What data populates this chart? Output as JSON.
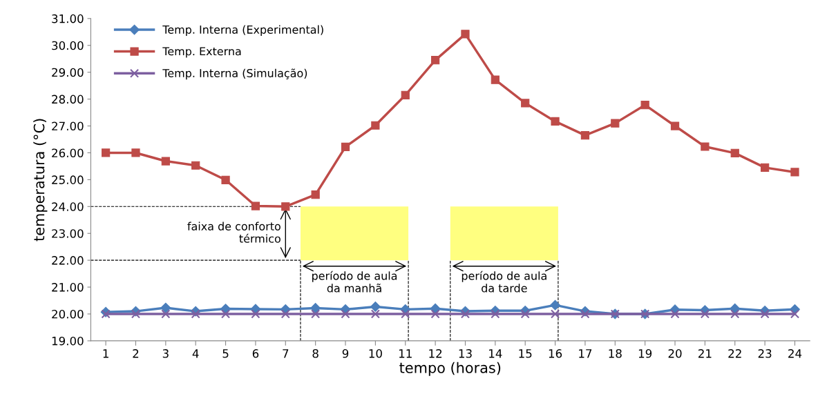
{
  "chart_data": {
    "type": "line",
    "xlabel": "tempo (horas)",
    "ylabel": "temperatura (°C)",
    "x": [
      1,
      2,
      3,
      4,
      5,
      6,
      7,
      8,
      9,
      10,
      11,
      12,
      13,
      14,
      15,
      16,
      17,
      18,
      19,
      20,
      21,
      22,
      23,
      24
    ],
    "xlim": [
      0.5,
      24.5
    ],
    "xticks": [
      1,
      2,
      3,
      4,
      5,
      6,
      7,
      8,
      9,
      10,
      11,
      12,
      13,
      14,
      15,
      16,
      17,
      18,
      19,
      20,
      21,
      22,
      23,
      24
    ],
    "ylim": [
      19,
      31
    ],
    "yticks": [
      {
        "value": 19,
        "label": "19.00"
      },
      {
        "value": 20,
        "label": "20.00"
      },
      {
        "value": 21,
        "label": "21.00"
      },
      {
        "value": 22,
        "label": "22.00"
      },
      {
        "value": 23,
        "label": "23.00"
      },
      {
        "value": 24,
        "label": "24.00"
      },
      {
        "value": 25,
        "label": "25.00"
      },
      {
        "value": 26,
        "label": "26.00"
      },
      {
        "value": 27,
        "label": "27.00"
      },
      {
        "value": 28,
        "label": "28.00"
      },
      {
        "value": 29,
        "label": "29.00"
      },
      {
        "value": 30,
        "label": "30.00"
      },
      {
        "value": 31,
        "label": "31.00"
      }
    ],
    "grid": false,
    "legend": "top left",
    "line_style": "solid",
    "series": [
      {
        "name": "Temp. Interna (Experimental)",
        "color": "#4a7ebb",
        "marker": "diamond",
        "values": [
          20.07,
          20.1,
          20.23,
          20.1,
          20.19,
          20.18,
          20.17,
          20.22,
          20.17,
          20.27,
          20.17,
          20.2,
          20.1,
          20.12,
          20.12,
          20.33,
          20.1,
          20.0,
          20.0,
          20.16,
          20.14,
          20.2,
          20.12,
          20.17
        ]
      },
      {
        "name": "Temp. Externa",
        "color": "#be4b48",
        "marker": "square",
        "values": [
          26.0,
          26.0,
          25.69,
          25.53,
          24.99,
          24.02,
          24.0,
          24.44,
          26.22,
          27.02,
          28.15,
          29.45,
          30.42,
          28.72,
          27.85,
          27.17,
          26.65,
          27.1,
          27.78,
          27.0,
          26.23,
          25.99,
          25.45,
          25.28
        ]
      },
      {
        "name": "Temp. Interna (Simulação)",
        "color": "#7d5fa0",
        "marker": "cross",
        "values": [
          20,
          20,
          20,
          20,
          20,
          20,
          20,
          20,
          20,
          20,
          20,
          20,
          20,
          20,
          20,
          20,
          20,
          20,
          20,
          20,
          20,
          20,
          20,
          20
        ]
      }
    ],
    "bands": [
      {
        "axis": "x",
        "from": 7.5,
        "to": 11.1,
        "label": "período de aula\nda manhã",
        "color": "#ffff80"
      },
      {
        "axis": "x",
        "from": 12.5,
        "to": 16.1,
        "label": "período de aula\nda tarde",
        "color": "#ffff80"
      }
    ],
    "annotations": [
      "faixa de conforto\ntérmico"
    ],
    "ref_lines": [
      {
        "axis": "y",
        "value": 22,
        "line_style": "dashed",
        "color": "#000000"
      },
      {
        "axis": "y",
        "value": 24,
        "line_style": "dashed",
        "color": "#000000"
      },
      {
        "axis": "x",
        "value": 7.5,
        "line_style": "dashed",
        "color": "#000000"
      },
      {
        "axis": "x",
        "value": 11.1,
        "line_style": "dashed",
        "color": "#000000"
      },
      {
        "axis": "x",
        "value": 12.5,
        "line_style": "dashed",
        "color": "#000000"
      },
      {
        "axis": "x",
        "value": 16.1,
        "line_style": "dashed",
        "color": "#000000"
      }
    ]
  }
}
